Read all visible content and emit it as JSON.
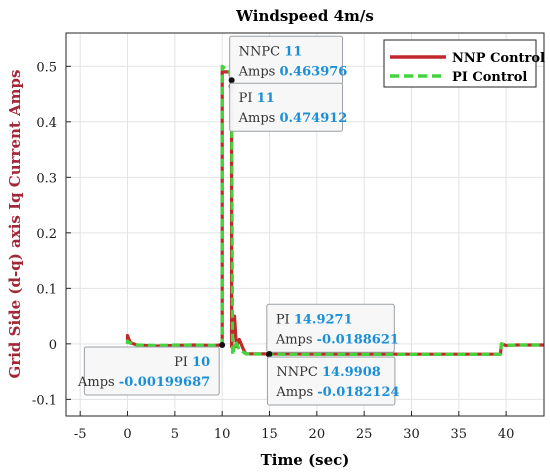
{
  "chart_data": {
    "type": "line",
    "title": "Windspeed 4m/s",
    "xlabel": "Time (sec)",
    "ylabel": "Grid Side (d-q) axis Iq Current Amps",
    "xlim": [
      -6.5,
      44
    ],
    "ylim": [
      -0.13,
      0.56
    ],
    "xticks": [
      -5,
      0,
      5,
      10,
      15,
      20,
      25,
      30,
      35,
      40
    ],
    "yticks": [
      -0.1,
      0,
      0.1,
      0.2,
      0.3,
      0.4,
      0.5
    ],
    "ytick_labels": [
      "-0.1",
      "0",
      "0.1",
      "0.2",
      "0.3",
      "0.4",
      "0.5"
    ],
    "grid": true,
    "legend_position": "top-right",
    "series": [
      {
        "name": "NNP Control",
        "color": "#c0282c",
        "dash": "solid",
        "x": [
          0,
          0,
          0.1,
          0.3,
          1,
          3,
          5,
          7,
          9,
          9.9,
          10,
          10,
          10.8,
          10.9,
          11,
          11,
          11.3,
          11.5,
          11.8,
          12.3,
          12.5,
          15,
          20,
          25,
          30,
          35,
          39.4,
          39.5,
          40,
          41,
          44
        ],
        "y": [
          0,
          0.015,
          0.01,
          0.002,
          -0.002,
          -0.004,
          -0.003,
          -0.002,
          -0.003,
          -0.002,
          0,
          0.49,
          0.49,
          0.48,
          0.464,
          -0.005,
          0.05,
          -0.005,
          0.008,
          -0.012,
          -0.018,
          -0.0182,
          -0.0185,
          -0.0185,
          -0.0187,
          -0.0187,
          -0.0185,
          0,
          -0.003,
          -0.002,
          -0.002
        ]
      },
      {
        "name": "PI Control",
        "color": "#43d63c",
        "dash": "dashed",
        "x": [
          0,
          0,
          0.1,
          0.3,
          1,
          3,
          5,
          7,
          9,
          9.9,
          10,
          10,
          10.8,
          11,
          11.1,
          11.4,
          11.8,
          12.5,
          15,
          20,
          25,
          30,
          35,
          39.4,
          39.5,
          40,
          41,
          44
        ],
        "y": [
          0,
          0.005,
          0.003,
          0.001,
          -0.002,
          -0.003,
          -0.002,
          -0.002,
          -0.003,
          -0.002,
          0,
          0.5,
          0.49,
          0.475,
          -0.02,
          0.005,
          -0.01,
          -0.018,
          -0.0189,
          -0.0189,
          -0.019,
          -0.019,
          -0.019,
          -0.0188,
          0,
          -0.003,
          -0.002,
          -0.002
        ]
      }
    ],
    "annotations": [
      {
        "series": "NNPC",
        "x": 11,
        "y": 0.463976,
        "x_label": "NNPC",
        "x_value": "11",
        "y_label": "Amps",
        "y_value": "0.463976",
        "place": "above-right"
      },
      {
        "series": "PI",
        "x": 11,
        "y": 0.474912,
        "x_label": "PI",
        "x_value": "11",
        "y_label": "Amps",
        "y_value": "0.474912",
        "place": "below-right"
      },
      {
        "series": "PI",
        "x": 10,
        "y": -0.00199687,
        "x_label": "PI",
        "x_value": "10",
        "y_label": "Amps",
        "y_value": "-0.00199687",
        "place": "below-left"
      },
      {
        "series": "PI",
        "x": 14.9271,
        "y": -0.0188621,
        "x_label": "PI",
        "x_value": "14.9271",
        "y_label": "Amps",
        "y_value": "-0.0188621",
        "place": "above-right"
      },
      {
        "series": "NNPC",
        "x": 14.9908,
        "y": -0.0182124,
        "x_label": "NNPC",
        "x_value": "14.9908",
        "y_label": "Amps",
        "y_value": "-0.0182124",
        "place": "below-right"
      }
    ],
    "value_color": "#1a8fd8"
  }
}
